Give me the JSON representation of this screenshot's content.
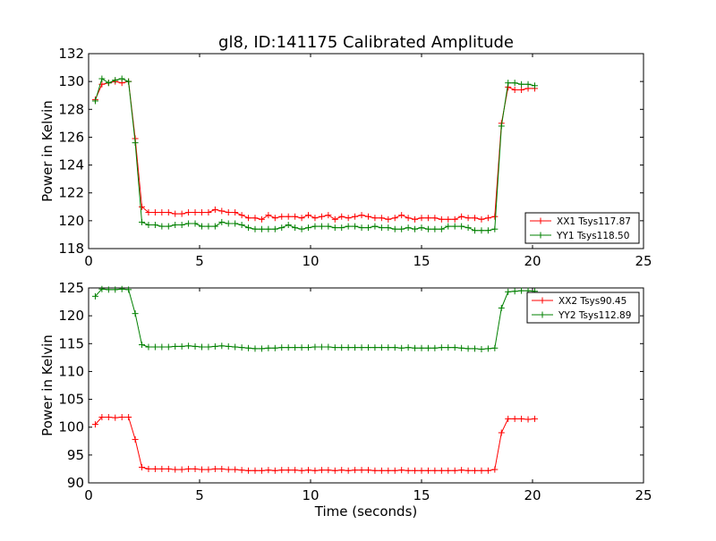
{
  "title": "gl8, ID:141175 Calibrated Amplitude",
  "colors": {
    "xx": "#ff0000",
    "yy": "#008000"
  },
  "chart_data": [
    {
      "type": "line",
      "ylabel": "Power in Kelvin",
      "xlabel": "",
      "xlim": [
        0,
        25
      ],
      "ylim": [
        118,
        132
      ],
      "xticks": [
        "0",
        "5",
        "10",
        "15",
        "20",
        "25"
      ],
      "yticks": [
        "118",
        "120",
        "122",
        "124",
        "126",
        "128",
        "130",
        "132"
      ],
      "grid": false,
      "legend_position": "lower-right",
      "x": [
        0.3,
        0.6,
        0.9,
        1.2,
        1.5,
        1.8,
        2.1,
        2.4,
        2.7,
        3.0,
        3.3,
        3.6,
        3.9,
        4.2,
        4.5,
        4.8,
        5.1,
        5.4,
        5.7,
        6.0,
        6.3,
        6.6,
        6.9,
        7.2,
        7.5,
        7.8,
        8.1,
        8.4,
        8.7,
        9.0,
        9.3,
        9.6,
        9.9,
        10.2,
        10.5,
        10.8,
        11.1,
        11.4,
        11.7,
        12.0,
        12.3,
        12.6,
        12.9,
        13.2,
        13.5,
        13.8,
        14.1,
        14.4,
        14.7,
        15.0,
        15.3,
        15.6,
        15.9,
        16.2,
        16.5,
        16.8,
        17.1,
        17.4,
        17.7,
        18.0,
        18.3,
        18.6,
        18.9,
        19.2,
        19.5,
        19.8,
        20.1
      ],
      "series": [
        {
          "name": "XX1 Tsys117.87",
          "color": "#ff0000",
          "values": [
            128.7,
            129.8,
            129.9,
            130.0,
            129.9,
            130.0,
            125.9,
            121.0,
            120.6,
            120.6,
            120.6,
            120.6,
            120.5,
            120.5,
            120.6,
            120.6,
            120.6,
            120.6,
            120.8,
            120.7,
            120.6,
            120.6,
            120.4,
            120.2,
            120.2,
            120.1,
            120.4,
            120.2,
            120.3,
            120.3,
            120.3,
            120.2,
            120.4,
            120.2,
            120.3,
            120.4,
            120.1,
            120.3,
            120.2,
            120.3,
            120.4,
            120.3,
            120.2,
            120.2,
            120.1,
            120.2,
            120.4,
            120.2,
            120.1,
            120.2,
            120.2,
            120.2,
            120.1,
            120.1,
            120.1,
            120.3,
            120.2,
            120.2,
            120.1,
            120.2,
            120.3,
            127.0,
            129.6,
            129.4,
            129.4,
            129.5,
            129.5
          ]
        },
        {
          "name": "YY1 Tsys118.50",
          "color": "#008000",
          "values": [
            128.6,
            130.2,
            129.9,
            130.1,
            130.2,
            130.0,
            125.6,
            119.9,
            119.7,
            119.7,
            119.6,
            119.6,
            119.7,
            119.7,
            119.8,
            119.8,
            119.6,
            119.6,
            119.6,
            119.9,
            119.8,
            119.8,
            119.7,
            119.5,
            119.4,
            119.4,
            119.4,
            119.4,
            119.5,
            119.7,
            119.5,
            119.4,
            119.5,
            119.6,
            119.6,
            119.6,
            119.5,
            119.5,
            119.6,
            119.6,
            119.5,
            119.5,
            119.6,
            119.5,
            119.5,
            119.4,
            119.4,
            119.5,
            119.4,
            119.5,
            119.4,
            119.4,
            119.4,
            119.6,
            119.6,
            119.6,
            119.5,
            119.3,
            119.3,
            119.3,
            119.4,
            126.8,
            129.9,
            129.9,
            129.8,
            129.8,
            129.7
          ]
        }
      ]
    },
    {
      "type": "line",
      "ylabel": "Power in Kelvin",
      "xlabel": "Time (seconds)",
      "xlim": [
        0,
        25
      ],
      "ylim": [
        90,
        125
      ],
      "xticks": [
        "0",
        "5",
        "10",
        "15",
        "20",
        "25"
      ],
      "yticks": [
        "90",
        "95",
        "100",
        "105",
        "110",
        "115",
        "120",
        "125"
      ],
      "grid": false,
      "legend_position": "upper-right",
      "x": [
        0.3,
        0.6,
        0.9,
        1.2,
        1.5,
        1.8,
        2.1,
        2.4,
        2.7,
        3.0,
        3.3,
        3.6,
        3.9,
        4.2,
        4.5,
        4.8,
        5.1,
        5.4,
        5.7,
        6.0,
        6.3,
        6.6,
        6.9,
        7.2,
        7.5,
        7.8,
        8.1,
        8.4,
        8.7,
        9.0,
        9.3,
        9.6,
        9.9,
        10.2,
        10.5,
        10.8,
        11.1,
        11.4,
        11.7,
        12.0,
        12.3,
        12.6,
        12.9,
        13.2,
        13.5,
        13.8,
        14.1,
        14.4,
        14.7,
        15.0,
        15.3,
        15.6,
        15.9,
        16.2,
        16.5,
        16.8,
        17.1,
        17.4,
        17.7,
        18.0,
        18.3,
        18.6,
        18.9,
        19.2,
        19.5,
        19.8,
        20.1
      ],
      "series": [
        {
          "name": "XX2 Tsys90.45",
          "color": "#ff0000",
          "values": [
            100.5,
            101.8,
            101.8,
            101.7,
            101.8,
            101.8,
            97.8,
            92.8,
            92.5,
            92.5,
            92.5,
            92.5,
            92.4,
            92.4,
            92.5,
            92.5,
            92.4,
            92.4,
            92.5,
            92.5,
            92.4,
            92.4,
            92.3,
            92.2,
            92.2,
            92.2,
            92.3,
            92.2,
            92.3,
            92.3,
            92.3,
            92.2,
            92.3,
            92.2,
            92.3,
            92.3,
            92.2,
            92.3,
            92.2,
            92.3,
            92.3,
            92.3,
            92.2,
            92.2,
            92.2,
            92.2,
            92.3,
            92.2,
            92.2,
            92.2,
            92.2,
            92.2,
            92.2,
            92.2,
            92.2,
            92.3,
            92.2,
            92.2,
            92.2,
            92.2,
            92.4,
            99.0,
            101.5,
            101.5,
            101.5,
            101.4,
            101.5
          ]
        },
        {
          "name": "YY2 Tsys112.89",
          "color": "#008000",
          "values": [
            123.5,
            124.8,
            124.7,
            124.7,
            124.8,
            124.7,
            120.4,
            114.8,
            114.4,
            114.4,
            114.4,
            114.4,
            114.5,
            114.5,
            114.6,
            114.5,
            114.4,
            114.4,
            114.5,
            114.6,
            114.5,
            114.4,
            114.3,
            114.2,
            114.1,
            114.1,
            114.2,
            114.2,
            114.3,
            114.3,
            114.3,
            114.3,
            114.3,
            114.4,
            114.4,
            114.4,
            114.3,
            114.3,
            114.3,
            114.3,
            114.3,
            114.3,
            114.3,
            114.3,
            114.3,
            114.3,
            114.2,
            114.3,
            114.2,
            114.2,
            114.2,
            114.2,
            114.3,
            114.3,
            114.3,
            114.2,
            114.1,
            114.1,
            114.0,
            114.1,
            114.2,
            121.4,
            124.3,
            124.4,
            124.5,
            124.5,
            124.4
          ]
        }
      ]
    }
  ]
}
